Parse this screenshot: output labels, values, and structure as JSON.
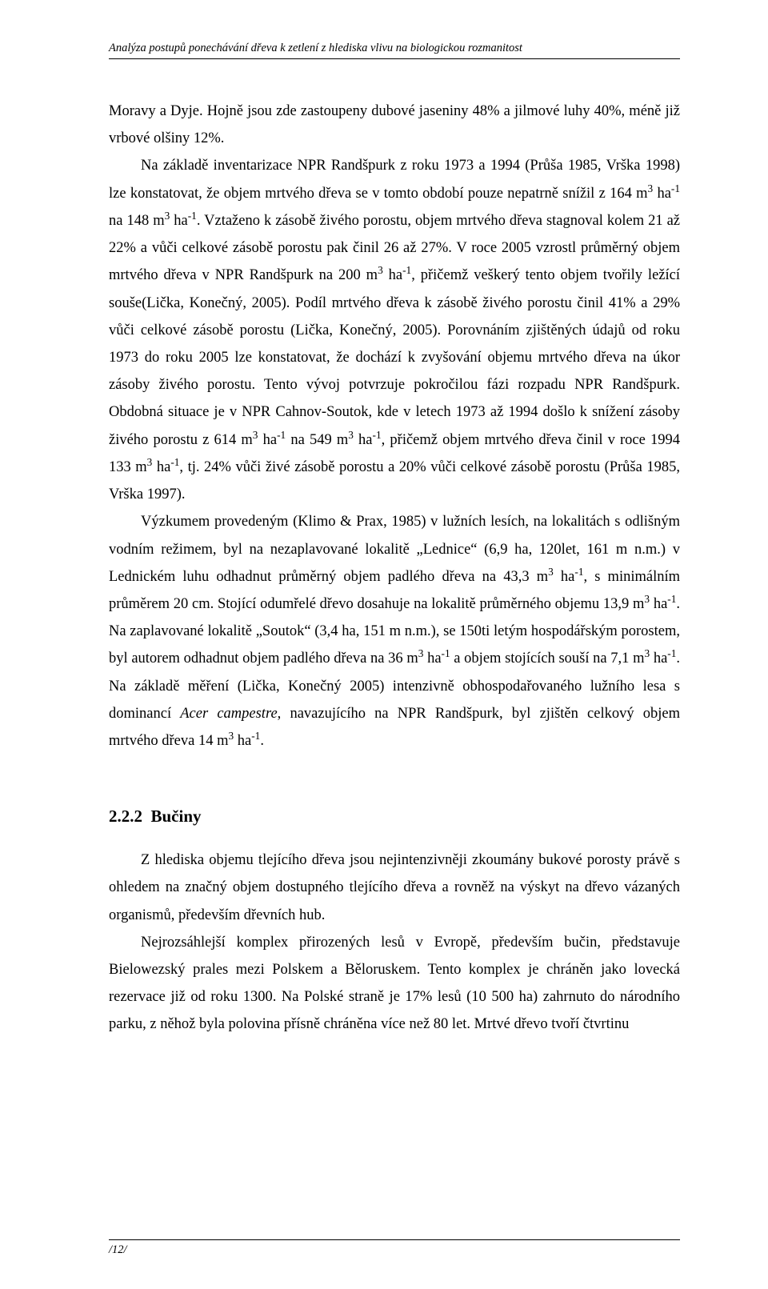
{
  "header": {
    "text": "Analýza postupů ponechávání dřeva k zetlení z hlediska vlivu na biologickou rozmanitost"
  },
  "body": {
    "p1_part1": "Moravy a Dyje. Hojně jsou zde zastoupeny dubové jaseniny 48% a jilmové luhy 40%, méně již vrbové olšiny 12%.",
    "p2_indent_a": "Na základě inventarizace NPR Randšpurk z roku 1973 a 1994 (Průša 1985, Vrška 1998) lze konstatovat, že objem mrtvého dřeva se v tomto období pouze nepatrně snížil z 164 m",
    "p2_indent_b": " ha",
    "p2_indent_c": " na 148 m",
    "p2_indent_d": " ha",
    "p2_indent_e": ". Vztaženo k zásobě živého porostu, objem mrtvého dřeva stagnoval kolem 21 až 22% a vůči celkové zásobě porostu pak činil 26 až 27%. V roce 2005 vzrostl průměrný objem mrtvého dřeva v NPR Randšpurk na 200 m",
    "p2_indent_f": " ha",
    "p2_indent_g": ", přičemž veškerý tento objem tvořily ležící souše(Lička, Konečný, 2005). Podíl mrtvého dřeva k zásobě živého porostu činil 41% a 29% vůči celkové zásobě porostu (Lička, Konečný, 2005). Porovnáním zjištěných údajů od roku 1973 do roku 2005 lze konstatovat, že dochází k zvyšování objemu mrtvého dřeva na úkor zásoby živého porostu. Tento vývoj potvrzuje pokročilou fázi rozpadu NPR Randšpurk. Obdobná situace je v NPR Cahnov-Soutok, kde v letech 1973 až 1994 došlo k snížení zásoby živého porostu z 614 m",
    "p2_indent_h": " ha",
    "p2_indent_i": " na 549 m",
    "p2_indent_j": " ha",
    "p2_indent_k": ", přičemž objem mrtvého dřeva činil v roce 1994 133 m",
    "p2_indent_l": " ha",
    "p2_indent_m": ", tj. 24% vůči živé zásobě porostu a 20% vůči celkové zásobě porostu (Průša 1985, Vrška 1997).",
    "p3_a": "Výzkumem provedeným (Klimo & Prax, 1985) v lužních lesích, na lokalitách s odlišným vodním režimem, byl na nezaplavované lokalitě „Lednice“ (6,9 ha, 120let, 161 m n.m.) v Lednickém luhu odhadnut průměrný objem padlého dřeva na 43,3 m",
    "p3_b": " ha",
    "p3_c": ", s minimálním průměrem 20 cm. Stojící odumřelé dřevo dosahuje na lokalitě průměrného objemu 13,9 m",
    "p3_d": " ha",
    "p3_e": ". Na zaplavované lokalitě „Soutok“ (3,4 ha, 151 m n.m.), se 150ti letým hospodářským porostem, byl autorem odhadnut objem padlého dřeva na 36 m",
    "p3_f": " ha",
    "p3_g": " a objem stojících souší na 7,1 m",
    "p3_h": " ha",
    "p3_i": ". Na základě měření (Lička, Konečný 2005) intenzivně obhospodařovaného lužního lesa s dominancí ",
    "p3_italic": "Acer campestre",
    "p3_j": ", navazujícího na NPR Randšpurk, byl zjištěn celkový objem mrtvého dřeva 14 m",
    "p3_k": " ha",
    "p3_l": "."
  },
  "section": {
    "number": "2.2.2",
    "title": "Bučiny"
  },
  "section_body": {
    "p4": "Z hlediska objemu tlejícího dřeva jsou nejintenzivněji zkoumány bukové porosty právě s ohledem na značný objem dostupného tlejícího dřeva a rovněž na výskyt na dřevo vázaných organismů, především dřevních hub.",
    "p5": "Nejrozsáhlejší komplex přirozených lesů v Evropě, především bučin, představuje Bielowezský prales mezi Polskem a Běloruskem. Tento komplex je chráněn jako lovecká rezervace již od roku 1300. Na Polské straně je 17% lesů (10 500 ha) zahrnuto do národního parku, z něhož byla polovina přísně chráněna více než 80 let. Mrtvé dřevo tvoří čtvrtinu"
  },
  "sup": {
    "three": "3",
    "minus1": "-1",
    "minus_1_compound": "- 1"
  },
  "footer": {
    "text": "/12/"
  }
}
